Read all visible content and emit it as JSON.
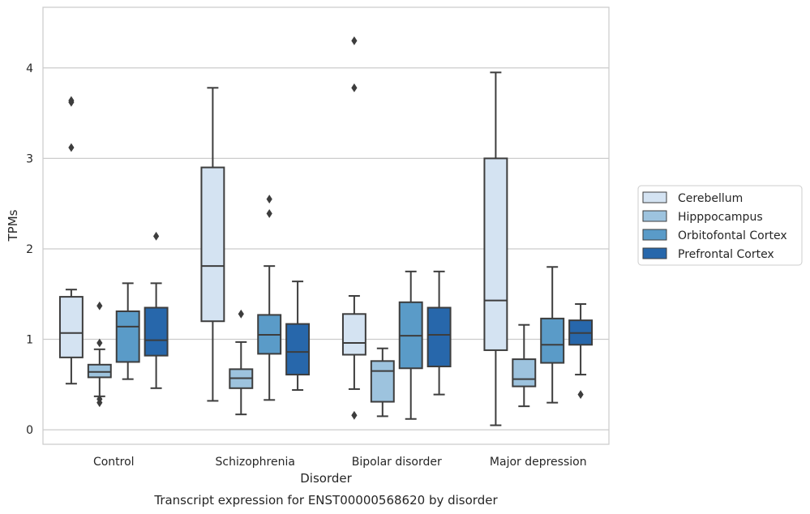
{
  "chart_data": {
    "type": "boxplot",
    "title": "Transcript expression for ENST00000568620 by disorder",
    "xlabel": "Disorder",
    "ylabel": "TPMs",
    "ylim": [
      -0.16,
      4.67
    ],
    "yticks": [
      0,
      1,
      2,
      3,
      4
    ],
    "grid": "horizontal",
    "legend_position": "right",
    "categories": [
      "Control",
      "Schizophrenia",
      "Bipolar disorder",
      "Major depression"
    ],
    "series": [
      {
        "name": "Cerebellum",
        "color": "#d4e3f2",
        "boxes": [
          {
            "whislo": 0.51,
            "q1": 0.8,
            "med": 1.07,
            "q3": 1.47,
            "whishi": 1.55,
            "fliers": [
              3.12,
              3.62,
              3.64
            ]
          },
          {
            "whislo": 0.32,
            "q1": 1.2,
            "med": 1.81,
            "q3": 2.9,
            "whishi": 3.78,
            "fliers": []
          },
          {
            "whislo": 0.45,
            "q1": 0.83,
            "med": 0.96,
            "q3": 1.28,
            "whishi": 1.48,
            "fliers": [
              0.16,
              3.78,
              4.3
            ]
          },
          {
            "whislo": 0.05,
            "q1": 0.88,
            "med": 1.43,
            "q3": 3.0,
            "whishi": 3.95,
            "fliers": []
          }
        ]
      },
      {
        "name": "Hipppocampus",
        "color": "#9dc3de",
        "boxes": [
          {
            "whislo": 0.37,
            "q1": 0.58,
            "med": 0.64,
            "q3": 0.72,
            "whishi": 0.89,
            "fliers": [
              0.3,
              0.34,
              0.96,
              1.37
            ]
          },
          {
            "whislo": 0.17,
            "q1": 0.46,
            "med": 0.57,
            "q3": 0.67,
            "whishi": 0.97,
            "fliers": [
              1.28
            ]
          },
          {
            "whislo": 0.15,
            "q1": 0.31,
            "med": 0.65,
            "q3": 0.76,
            "whishi": 0.9,
            "fliers": []
          },
          {
            "whislo": 0.26,
            "q1": 0.48,
            "med": 0.56,
            "q3": 0.78,
            "whishi": 1.16,
            "fliers": []
          }
        ]
      },
      {
        "name": "Orbitofontal Cortex",
        "color": "#5a9bc8",
        "boxes": [
          {
            "whislo": 0.56,
            "q1": 0.75,
            "med": 1.14,
            "q3": 1.31,
            "whishi": 1.62,
            "fliers": []
          },
          {
            "whislo": 0.33,
            "q1": 0.84,
            "med": 1.05,
            "q3": 1.27,
            "whishi": 1.81,
            "fliers": [
              2.39,
              2.55
            ]
          },
          {
            "whislo": 0.12,
            "q1": 0.68,
            "med": 1.04,
            "q3": 1.41,
            "whishi": 1.75,
            "fliers": []
          },
          {
            "whislo": 0.3,
            "q1": 0.74,
            "med": 0.94,
            "q3": 1.23,
            "whishi": 1.8,
            "fliers": []
          }
        ]
      },
      {
        "name": "Prefrontal Cortex",
        "color": "#2767ab",
        "boxes": [
          {
            "whislo": 0.46,
            "q1": 0.82,
            "med": 0.99,
            "q3": 1.35,
            "whishi": 1.62,
            "fliers": [
              2.14
            ]
          },
          {
            "whislo": 0.44,
            "q1": 0.61,
            "med": 0.86,
            "q3": 1.17,
            "whishi": 1.64,
            "fliers": []
          },
          {
            "whislo": 0.39,
            "q1": 0.7,
            "med": 1.05,
            "q3": 1.35,
            "whishi": 1.75,
            "fliers": []
          },
          {
            "whislo": 0.61,
            "q1": 0.94,
            "med": 1.07,
            "q3": 1.21,
            "whishi": 1.39,
            "fliers": [
              0.39
            ]
          }
        ]
      }
    ]
  }
}
